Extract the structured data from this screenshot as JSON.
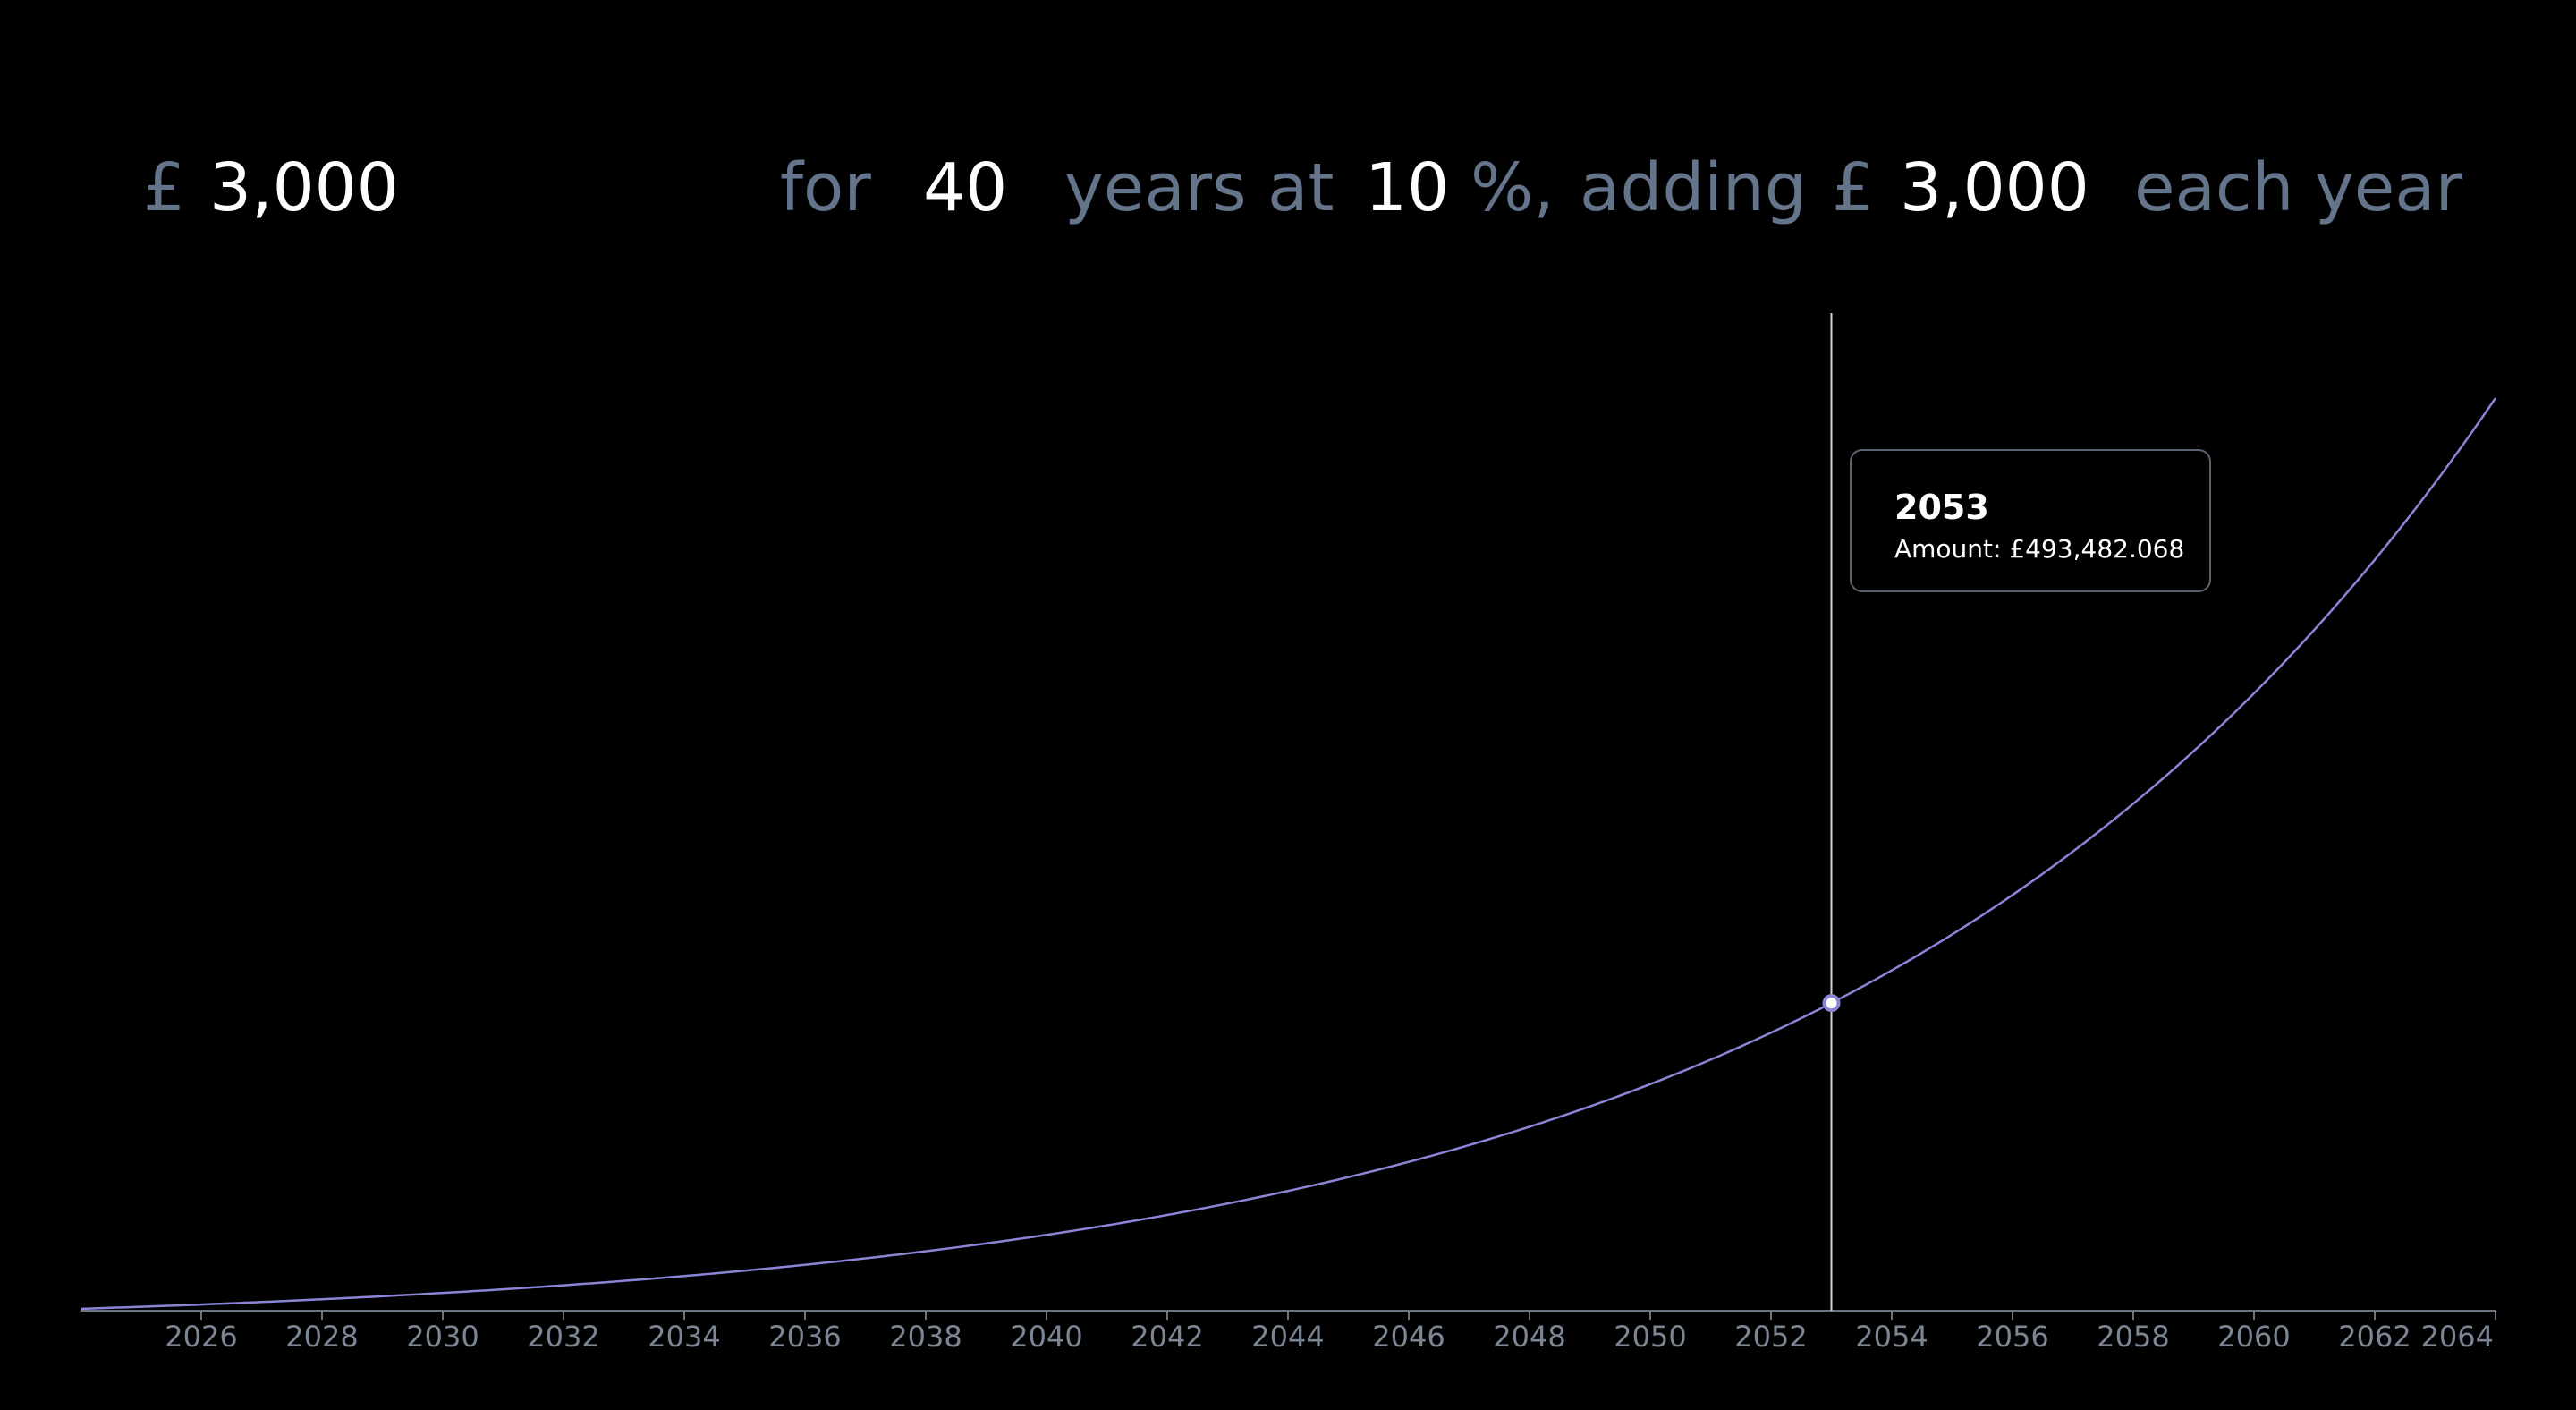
{
  "header": {
    "currency_symbol_1": "£",
    "principal": "3,000",
    "for_label": "for",
    "years": "40",
    "years_at_label": "years at",
    "rate": "10",
    "percent_label": "%,",
    "adding_label": "adding",
    "currency_symbol_2": "£",
    "contribution": "3,000",
    "each_year_label": "each year"
  },
  "colors": {
    "background": "#000000",
    "muted_text": "#64748b",
    "value_text": "#ffffff",
    "line": "#8b85d8",
    "axis": "#6b7280"
  },
  "tooltip": {
    "year": "2053",
    "amount_label": "Amount: £493,482.068"
  },
  "chart_data": {
    "type": "line",
    "x_range": [
      2024,
      2064
    ],
    "tick_labels": [
      "2026",
      "2028",
      "2030",
      "2032",
      "2034",
      "2036",
      "2038",
      "2040",
      "2042",
      "2044",
      "2046",
      "2048",
      "2050",
      "2052",
      "2054",
      "2056",
      "2058",
      "2060",
      "2062",
      "2064"
    ],
    "series": [
      {
        "principal": 3000,
        "annual_contribution": 3000,
        "rate": 0.1,
        "start_year": 2024,
        "end_year": 2064
      }
    ],
    "hover": {
      "x": 2053,
      "y": 493482.068
    },
    "grid": false
  }
}
